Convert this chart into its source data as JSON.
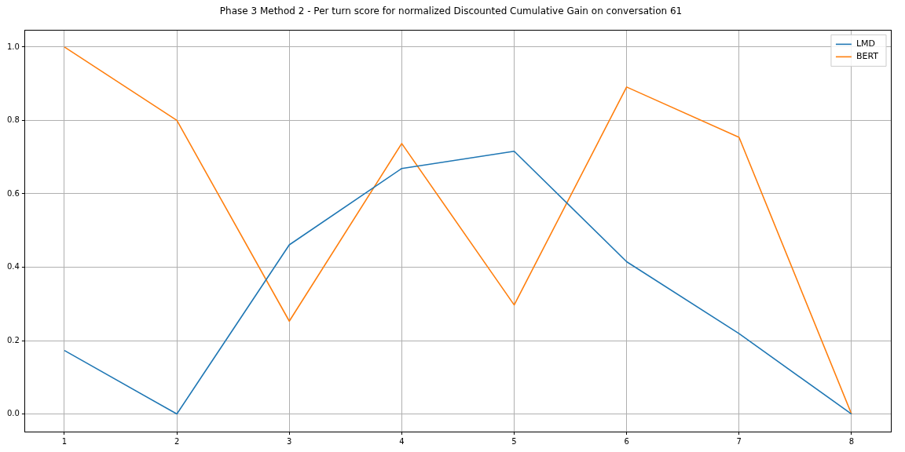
{
  "chart_data": {
    "type": "line",
    "title": "Phase 3 Method 2 - Per turn score for normalized Discounted Cumulative Gain on conversation 61",
    "x": [
      1,
      2,
      3,
      4,
      5,
      6,
      7,
      8
    ],
    "series": [
      {
        "name": "LMD",
        "color": "#1f77b4",
        "values": [
          0.173,
          0,
          0.461,
          0.669,
          0.716,
          0.415,
          0.219,
          0
        ]
      },
      {
        "name": "BERT",
        "color": "#ff7f0e",
        "values": [
          1.0,
          0.8,
          0.253,
          0.737,
          0.297,
          0.891,
          0.754,
          0
        ]
      }
    ],
    "xlim": [
      0.65,
      8.35
    ],
    "ylim": [
      -0.048,
      1.046
    ],
    "xticks": [
      1,
      2,
      3,
      4,
      5,
      6,
      7,
      8
    ],
    "yticks": [
      {
        "value": 0,
        "label": "0.0"
      },
      {
        "value": 0.2,
        "label": "0.2"
      },
      {
        "value": 0.4,
        "label": "0.4"
      },
      {
        "value": 0.6,
        "label": "0.6"
      },
      {
        "value": 0.8,
        "label": "0.8"
      },
      {
        "value": 1,
        "label": "1.0"
      }
    ],
    "grid": true,
    "legend": "top right",
    "marker": "none",
    "line_style": "solid"
  }
}
